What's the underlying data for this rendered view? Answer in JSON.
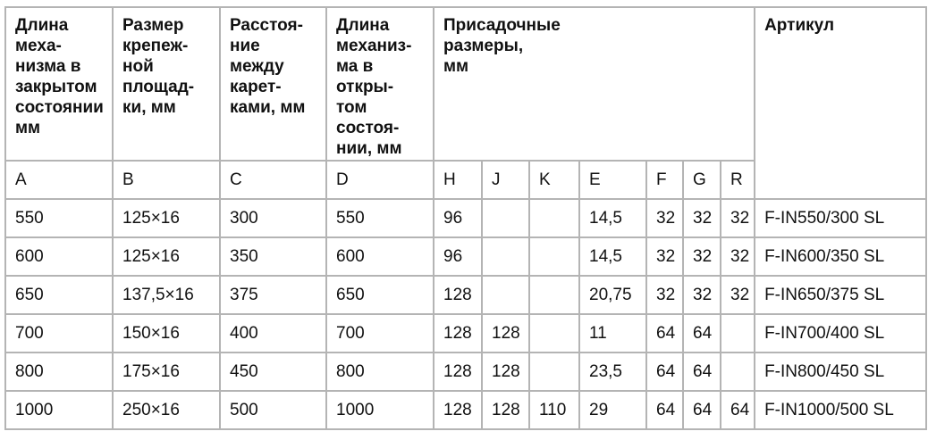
{
  "header": {
    "length_closed": "Длина\nмеха-\nнизма в\nзакрытом\nсостоянии\nмм",
    "mount_size": "Размер\nкрепеж-\nной\nплощад-\nки, мм",
    "carriage_distance": "Расстоя-\nние\nмежду\nкарет-\nками, мм",
    "length_open": "Длина\nмеханиз-\nма в\nоткры-\nтом\nсостоя-\nнии, мм",
    "fitting_dims": "Присадочные\nразмеры,\nмм",
    "article": "Артикул"
  },
  "letters": [
    "A",
    "B",
    "C",
    "D",
    "H",
    "J",
    "K",
    "E",
    "F",
    "G",
    "R"
  ],
  "rows": [
    [
      "550",
      "125×16",
      "300",
      "550",
      "96",
      "",
      "",
      "14,5",
      "32",
      "32",
      "32",
      "F-IN550/300 SL"
    ],
    [
      "600",
      "125×16",
      "350",
      "600",
      "96",
      "",
      "",
      "14,5",
      "32",
      "32",
      "32",
      "F-IN600/350 SL"
    ],
    [
      "650",
      "137,5×16",
      "375",
      "650",
      "128",
      "",
      "",
      "20,75",
      "32",
      "32",
      "32",
      "F-IN650/375 SL"
    ],
    [
      "700",
      "150×16",
      "400",
      "700",
      "128",
      "128",
      "",
      "11",
      "64",
      "64",
      "",
      "F-IN700/400 SL"
    ],
    [
      "800",
      "175×16",
      "450",
      "800",
      "128",
      "128",
      "",
      "23,5",
      "64",
      "64",
      "",
      "F-IN800/450 SL"
    ],
    [
      "1000",
      "250×16",
      "500",
      "1000",
      "128",
      "128",
      "110",
      "29",
      "64",
      "64",
      "64",
      "F-IN1000/500 SL"
    ]
  ]
}
